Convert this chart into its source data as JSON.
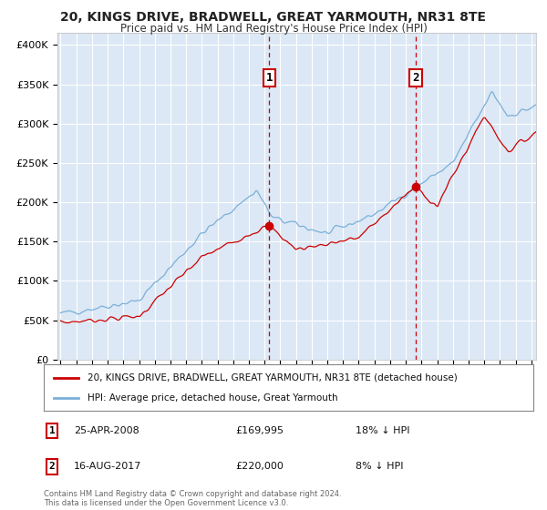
{
  "title": "20, KINGS DRIVE, BRADWELL, GREAT YARMOUTH, NR31 8TE",
  "subtitle": "Price paid vs. HM Land Registry's House Price Index (HPI)",
  "ylabel_ticks": [
    "£0",
    "£50K",
    "£100K",
    "£150K",
    "£200K",
    "£250K",
    "£300K",
    "£350K",
    "£400K"
  ],
  "ytick_values": [
    0,
    50000,
    100000,
    150000,
    200000,
    250000,
    300000,
    350000,
    400000
  ],
  "ylim": [
    0,
    415000
  ],
  "xlim_start": 1994.8,
  "xlim_end": 2025.3,
  "fig_bg_color": "#ffffff",
  "plot_bg_color": "#dce8f5",
  "grid_color": "#ffffff",
  "hpi_color": "#7ab0d8",
  "price_color": "#cc0000",
  "annotation_box_color": "#cc0000",
  "sale1_x": 2008.3,
  "sale1_y": 169995,
  "sale1_label": "1",
  "sale1_date": "25-APR-2008",
  "sale1_price": "£169,995",
  "sale1_pct": "18% ↓ HPI",
  "sale2_x": 2017.62,
  "sale2_y": 220000,
  "sale2_label": "2",
  "sale2_date": "16-AUG-2017",
  "sale2_price": "£220,000",
  "sale2_pct": "8% ↓ HPI",
  "legend_label_red": "20, KINGS DRIVE, BRADWELL, GREAT YARMOUTH, NR31 8TE (detached house)",
  "legend_label_blue": "HPI: Average price, detached house, Great Yarmouth",
  "footer_line1": "Contains HM Land Registry data © Crown copyright and database right 2024.",
  "footer_line2": "This data is licensed under the Open Government Licence v3.0."
}
